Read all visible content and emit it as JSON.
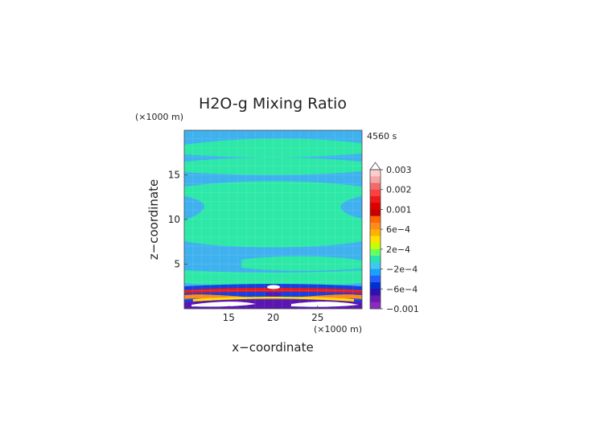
{
  "chart_data": {
    "type": "contour",
    "title": "H2O-g Mixing Ratio",
    "time_label": "4560 s",
    "xlabel": "x−coordinate",
    "ylabel": "z−coordinate",
    "x_unit": "(×1000 m)",
    "y_unit": "(×1000 m)",
    "xlim": [
      10,
      30
    ],
    "ylim": [
      0,
      20
    ],
    "x_ticks": [
      15,
      20,
      25
    ],
    "y_ticks": [
      5,
      10,
      15
    ],
    "grid": true,
    "colorbar": {
      "placement": "right",
      "labels": [
        "0.003",
        "0.002",
        "0.001",
        "6e−4",
        "2e−4",
        "−2e−4",
        "−6e−4",
        "−0.001"
      ],
      "colors": [
        "#ffcccc",
        "#f7a6a6",
        "#ef6c6c",
        "#ff4040",
        "#ee1a1a",
        "#dd0000",
        "#c40000",
        "#ff6600",
        "#ff8c1a",
        "#ffb000",
        "#ffe000",
        "#c8ff00",
        "#66ff66",
        "#26e6b0",
        "#40c8f0",
        "#1aa0ff",
        "#2060ff",
        "#0030d0",
        "#3010b0",
        "#6a1ab0",
        "#8a2bc0"
      ],
      "extend_top": true
    }
  }
}
